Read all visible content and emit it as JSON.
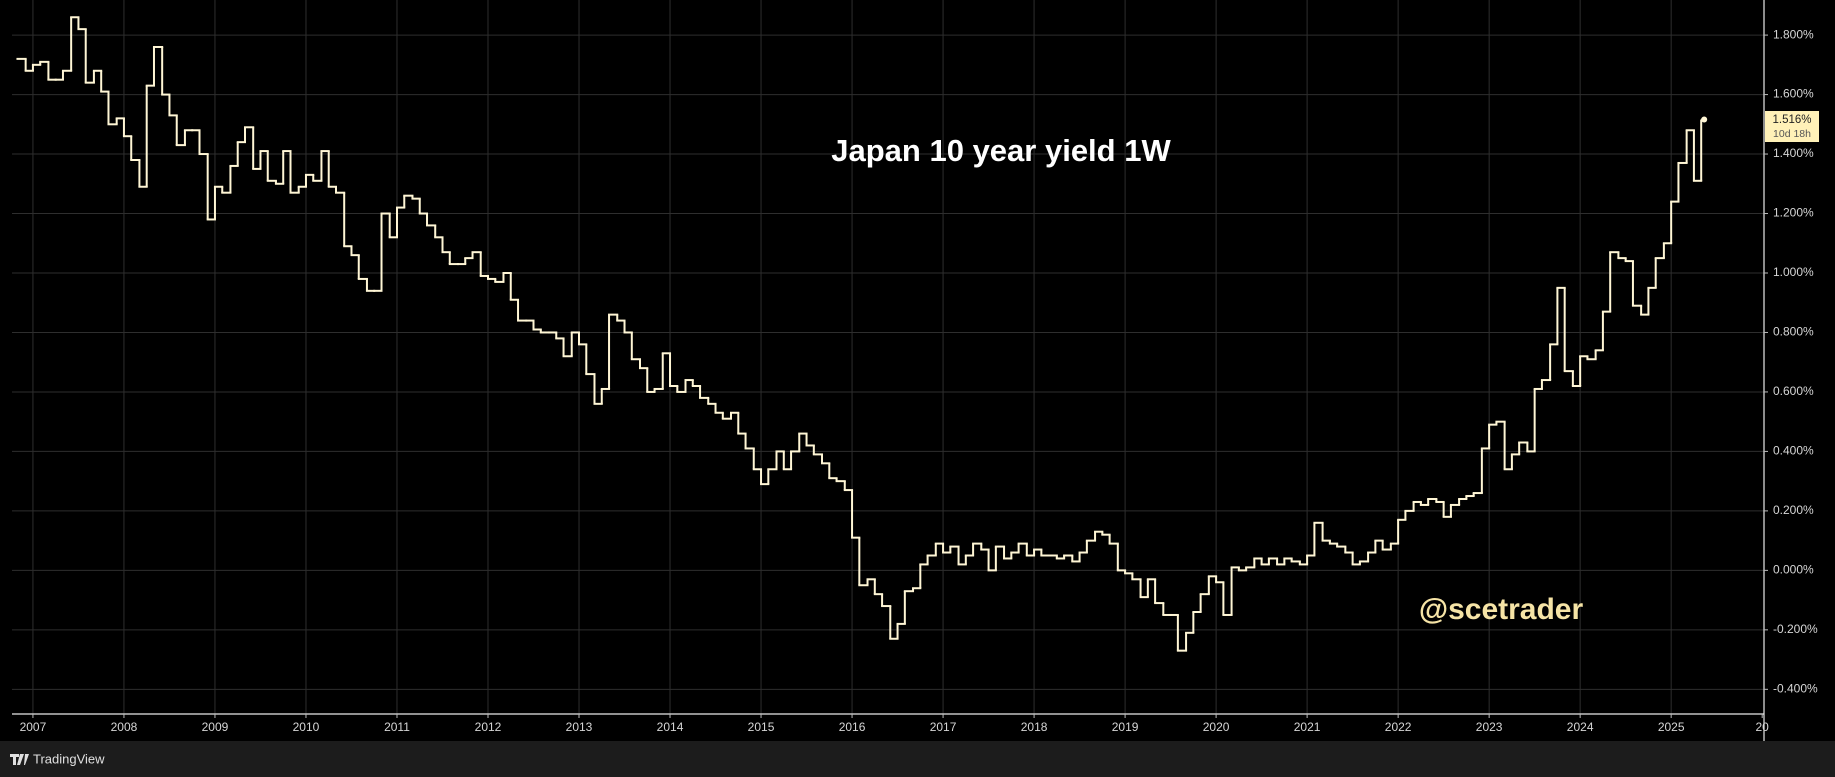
{
  "chart_data": {
    "type": "step",
    "title": "Japan 10 year yield 1W",
    "annotation": "@scetrader",
    "price_label": "1.516%",
    "countdown": "10d 18h",
    "brand": "TradingView",
    "color": "#fff6d5",
    "grid": true,
    "xlim": [
      2006.77,
      2026.02
    ],
    "ylim": [
      -0.483,
      1.918
    ],
    "xticks": [
      2007,
      2008,
      2009,
      2010,
      2011,
      2012,
      2013,
      2014,
      2015,
      2016,
      2017,
      2018,
      2019,
      2020,
      2021,
      2022,
      2023,
      2024,
      2025,
      {
        "value": 2026,
        "label": "20"
      }
    ],
    "yticks": [
      {
        "value": 1.8,
        "label": "1.800%"
      },
      {
        "value": 1.6,
        "label": "1.600%"
      },
      {
        "value": 1.4,
        "label": "1.400%"
      },
      {
        "value": 1.2,
        "label": "1.200%"
      },
      {
        "value": 1.0,
        "label": "1.000%"
      },
      {
        "value": 0.8,
        "label": "0.800%"
      },
      {
        "value": 0.6,
        "label": "0.600%"
      },
      {
        "value": 0.4,
        "label": "0.400%"
      },
      {
        "value": 0.2,
        "label": "0.200%"
      },
      {
        "value": 0,
        "label": "0.000%"
      },
      {
        "value": -0.2,
        "label": "-0.200%"
      },
      {
        "value": -0.4,
        "label": "-0.400%"
      }
    ],
    "x": [
      2006.83,
      2006.92,
      2007.0,
      2007.08,
      2007.17,
      2007.25,
      2007.33,
      2007.42,
      2007.5,
      2007.58,
      2007.67,
      2007.75,
      2007.83,
      2007.92,
      2008.0,
      2008.08,
      2008.17,
      2008.25,
      2008.33,
      2008.42,
      2008.5,
      2008.58,
      2008.67,
      2008.75,
      2008.83,
      2008.92,
      2009.0,
      2009.08,
      2009.17,
      2009.25,
      2009.33,
      2009.42,
      2009.5,
      2009.58,
      2009.67,
      2009.75,
      2009.83,
      2009.92,
      2010.0,
      2010.08,
      2010.17,
      2010.25,
      2010.33,
      2010.42,
      2010.5,
      2010.58,
      2010.67,
      2010.75,
      2010.83,
      2010.92,
      2011.0,
      2011.08,
      2011.17,
      2011.25,
      2011.33,
      2011.42,
      2011.5,
      2011.58,
      2011.67,
      2011.75,
      2011.83,
      2011.92,
      2012.0,
      2012.08,
      2012.17,
      2012.25,
      2012.33,
      2012.42,
      2012.5,
      2012.58,
      2012.67,
      2012.75,
      2012.83,
      2012.92,
      2013.0,
      2013.08,
      2013.17,
      2013.25,
      2013.33,
      2013.42,
      2013.5,
      2013.58,
      2013.67,
      2013.75,
      2013.83,
      2013.92,
      2014.0,
      2014.08,
      2014.17,
      2014.25,
      2014.33,
      2014.42,
      2014.5,
      2014.58,
      2014.67,
      2014.75,
      2014.83,
      2014.92,
      2015.0,
      2015.08,
      2015.17,
      2015.25,
      2015.33,
      2015.42,
      2015.5,
      2015.58,
      2015.67,
      2015.75,
      2015.83,
      2015.92,
      2016.0,
      2016.08,
      2016.17,
      2016.25,
      2016.33,
      2016.42,
      2016.5,
      2016.58,
      2016.67,
      2016.75,
      2016.83,
      2016.92,
      2017.0,
      2017.08,
      2017.17,
      2017.25,
      2017.33,
      2017.42,
      2017.5,
      2017.58,
      2017.67,
      2017.75,
      2017.83,
      2017.92,
      2018.0,
      2018.08,
      2018.17,
      2018.25,
      2018.33,
      2018.42,
      2018.5,
      2018.58,
      2018.67,
      2018.75,
      2018.83,
      2018.92,
      2019.0,
      2019.08,
      2019.17,
      2019.25,
      2019.33,
      2019.42,
      2019.5,
      2019.58,
      2019.67,
      2019.75,
      2019.83,
      2019.92,
      2020.0,
      2020.08,
      2020.17,
      2020.25,
      2020.33,
      2020.42,
      2020.5,
      2020.58,
      2020.67,
      2020.75,
      2020.83,
      2020.92,
      2021.0,
      2021.08,
      2021.17,
      2021.25,
      2021.33,
      2021.42,
      2021.5,
      2021.58,
      2021.67,
      2021.75,
      2021.83,
      2021.92,
      2022.0,
      2022.08,
      2022.17,
      2022.25,
      2022.33,
      2022.42,
      2022.5,
      2022.58,
      2022.67,
      2022.75,
      2022.83,
      2022.92,
      2023.0,
      2023.08,
      2023.17,
      2023.25,
      2023.33,
      2023.42,
      2023.5,
      2023.58,
      2023.67,
      2023.75,
      2023.83,
      2023.92,
      2024.0,
      2024.08,
      2024.17,
      2024.25,
      2024.33,
      2024.42,
      2024.5,
      2024.58,
      2024.67,
      2024.75,
      2024.83,
      2024.92,
      2025.0,
      2025.08,
      2025.17,
      2025.25,
      2025.33
    ],
    "values": [
      1.72,
      1.68,
      1.7,
      1.71,
      1.65,
      1.65,
      1.68,
      1.86,
      1.82,
      1.64,
      1.68,
      1.61,
      1.5,
      1.52,
      1.46,
      1.38,
      1.29,
      1.63,
      1.76,
      1.6,
      1.53,
      1.43,
      1.48,
      1.48,
      1.4,
      1.18,
      1.29,
      1.27,
      1.36,
      1.44,
      1.49,
      1.35,
      1.41,
      1.31,
      1.3,
      1.41,
      1.27,
      1.29,
      1.33,
      1.31,
      1.41,
      1.29,
      1.27,
      1.09,
      1.06,
      0.98,
      0.94,
      0.94,
      1.2,
      1.12,
      1.22,
      1.26,
      1.25,
      1.2,
      1.16,
      1.12,
      1.07,
      1.03,
      1.03,
      1.05,
      1.07,
      0.99,
      0.98,
      0.97,
      1.0,
      0.91,
      0.84,
      0.84,
      0.81,
      0.8,
      0.8,
      0.78,
      0.72,
      0.8,
      0.76,
      0.66,
      0.56,
      0.61,
      0.86,
      0.84,
      0.8,
      0.71,
      0.68,
      0.6,
      0.61,
      0.73,
      0.62,
      0.6,
      0.64,
      0.62,
      0.58,
      0.56,
      0.53,
      0.51,
      0.53,
      0.46,
      0.41,
      0.34,
      0.29,
      0.34,
      0.4,
      0.34,
      0.4,
      0.46,
      0.42,
      0.39,
      0.36,
      0.31,
      0.3,
      0.27,
      0.11,
      -0.05,
      -0.03,
      -0.08,
      -0.12,
      -0.23,
      -0.18,
      -0.07,
      -0.06,
      0.02,
      0.05,
      0.09,
      0.06,
      0.08,
      0.02,
      0.05,
      0.09,
      0.07,
      0.0,
      0.08,
      0.04,
      0.06,
      0.09,
      0.05,
      0.07,
      0.05,
      0.05,
      0.04,
      0.05,
      0.03,
      0.06,
      0.1,
      0.13,
      0.12,
      0.09,
      0.0,
      -0.01,
      -0.03,
      -0.09,
      -0.03,
      -0.11,
      -0.15,
      -0.15,
      -0.27,
      -0.21,
      -0.14,
      -0.08,
      -0.02,
      -0.04,
      -0.15,
      0.01,
      0.0,
      0.01,
      0.04,
      0.02,
      0.04,
      0.02,
      0.04,
      0.03,
      0.02,
      0.05,
      0.16,
      0.1,
      0.09,
      0.08,
      0.06,
      0.02,
      0.03,
      0.06,
      0.1,
      0.07,
      0.09,
      0.17,
      0.2,
      0.23,
      0.22,
      0.24,
      0.23,
      0.18,
      0.22,
      0.24,
      0.25,
      0.26,
      0.41,
      0.49,
      0.5,
      0.34,
      0.39,
      0.43,
      0.4,
      0.61,
      0.64,
      0.76,
      0.95,
      0.67,
      0.62,
      0.72,
      0.71,
      0.74,
      0.87,
      1.07,
      1.05,
      1.04,
      0.89,
      0.86,
      0.95,
      1.05,
      1.1,
      1.24,
      1.37,
      1.48,
      1.31,
      1.516
    ]
  }
}
